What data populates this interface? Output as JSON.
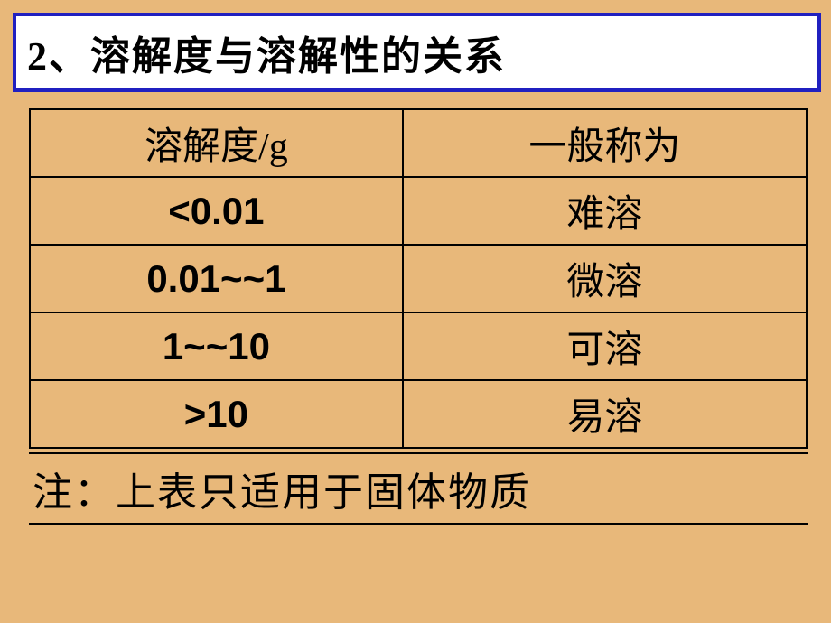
{
  "title": "2、溶解度与溶解性的关系",
  "table": {
    "headers": {
      "col1": "溶解度/g",
      "col2": "一般称为"
    },
    "rows": [
      {
        "solubility": "<0.01",
        "classification": "难溶"
      },
      {
        "solubility": "0.01~~1",
        "classification": "微溶"
      },
      {
        "solubility": "1~~10",
        "classification": "可溶"
      },
      {
        "solubility": ">10",
        "classification": "易溶"
      }
    ]
  },
  "note": "注：上表只适用于固体物质",
  "styling": {
    "background_color": "#e8b87a",
    "title_border_color": "#2020c0",
    "title_background": "#ffffff",
    "table_border_color": "#000000",
    "text_color": "#000000",
    "title_fontsize": 44,
    "cell_fontsize": 42,
    "note_fontsize": 44
  }
}
